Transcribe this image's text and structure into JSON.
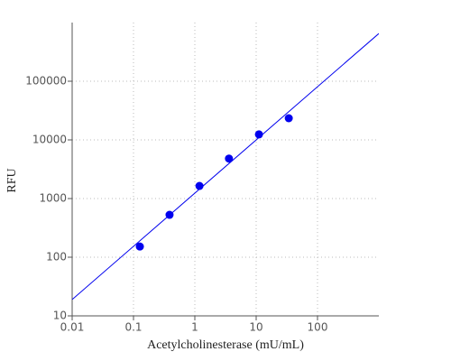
{
  "chart_data": {
    "type": "scatter",
    "x_label": "Acetylcholinesterase (mU/mL)",
    "y_label": "RFU",
    "xlog": true,
    "ylog": true,
    "grid": true,
    "xlim": [
      0.01,
      1000
    ],
    "ylim": [
      10,
      1000000
    ],
    "xticks": [
      0.01,
      0.1,
      1,
      10,
      100
    ],
    "yticks": [
      10,
      100,
      1000,
      10000,
      100000
    ],
    "series": [
      {
        "color": "#0000ee",
        "x": [
          0.127,
          0.387,
          1.19,
          3.6,
          11.1,
          34
        ],
        "values": [
          152,
          528,
          1640,
          4800,
          12400,
          23400
        ]
      }
    ],
    "fit_line": {
      "color": "#0000ee",
      "x": [
        0.01,
        1000
      ],
      "values": [
        19,
        650000
      ]
    }
  }
}
